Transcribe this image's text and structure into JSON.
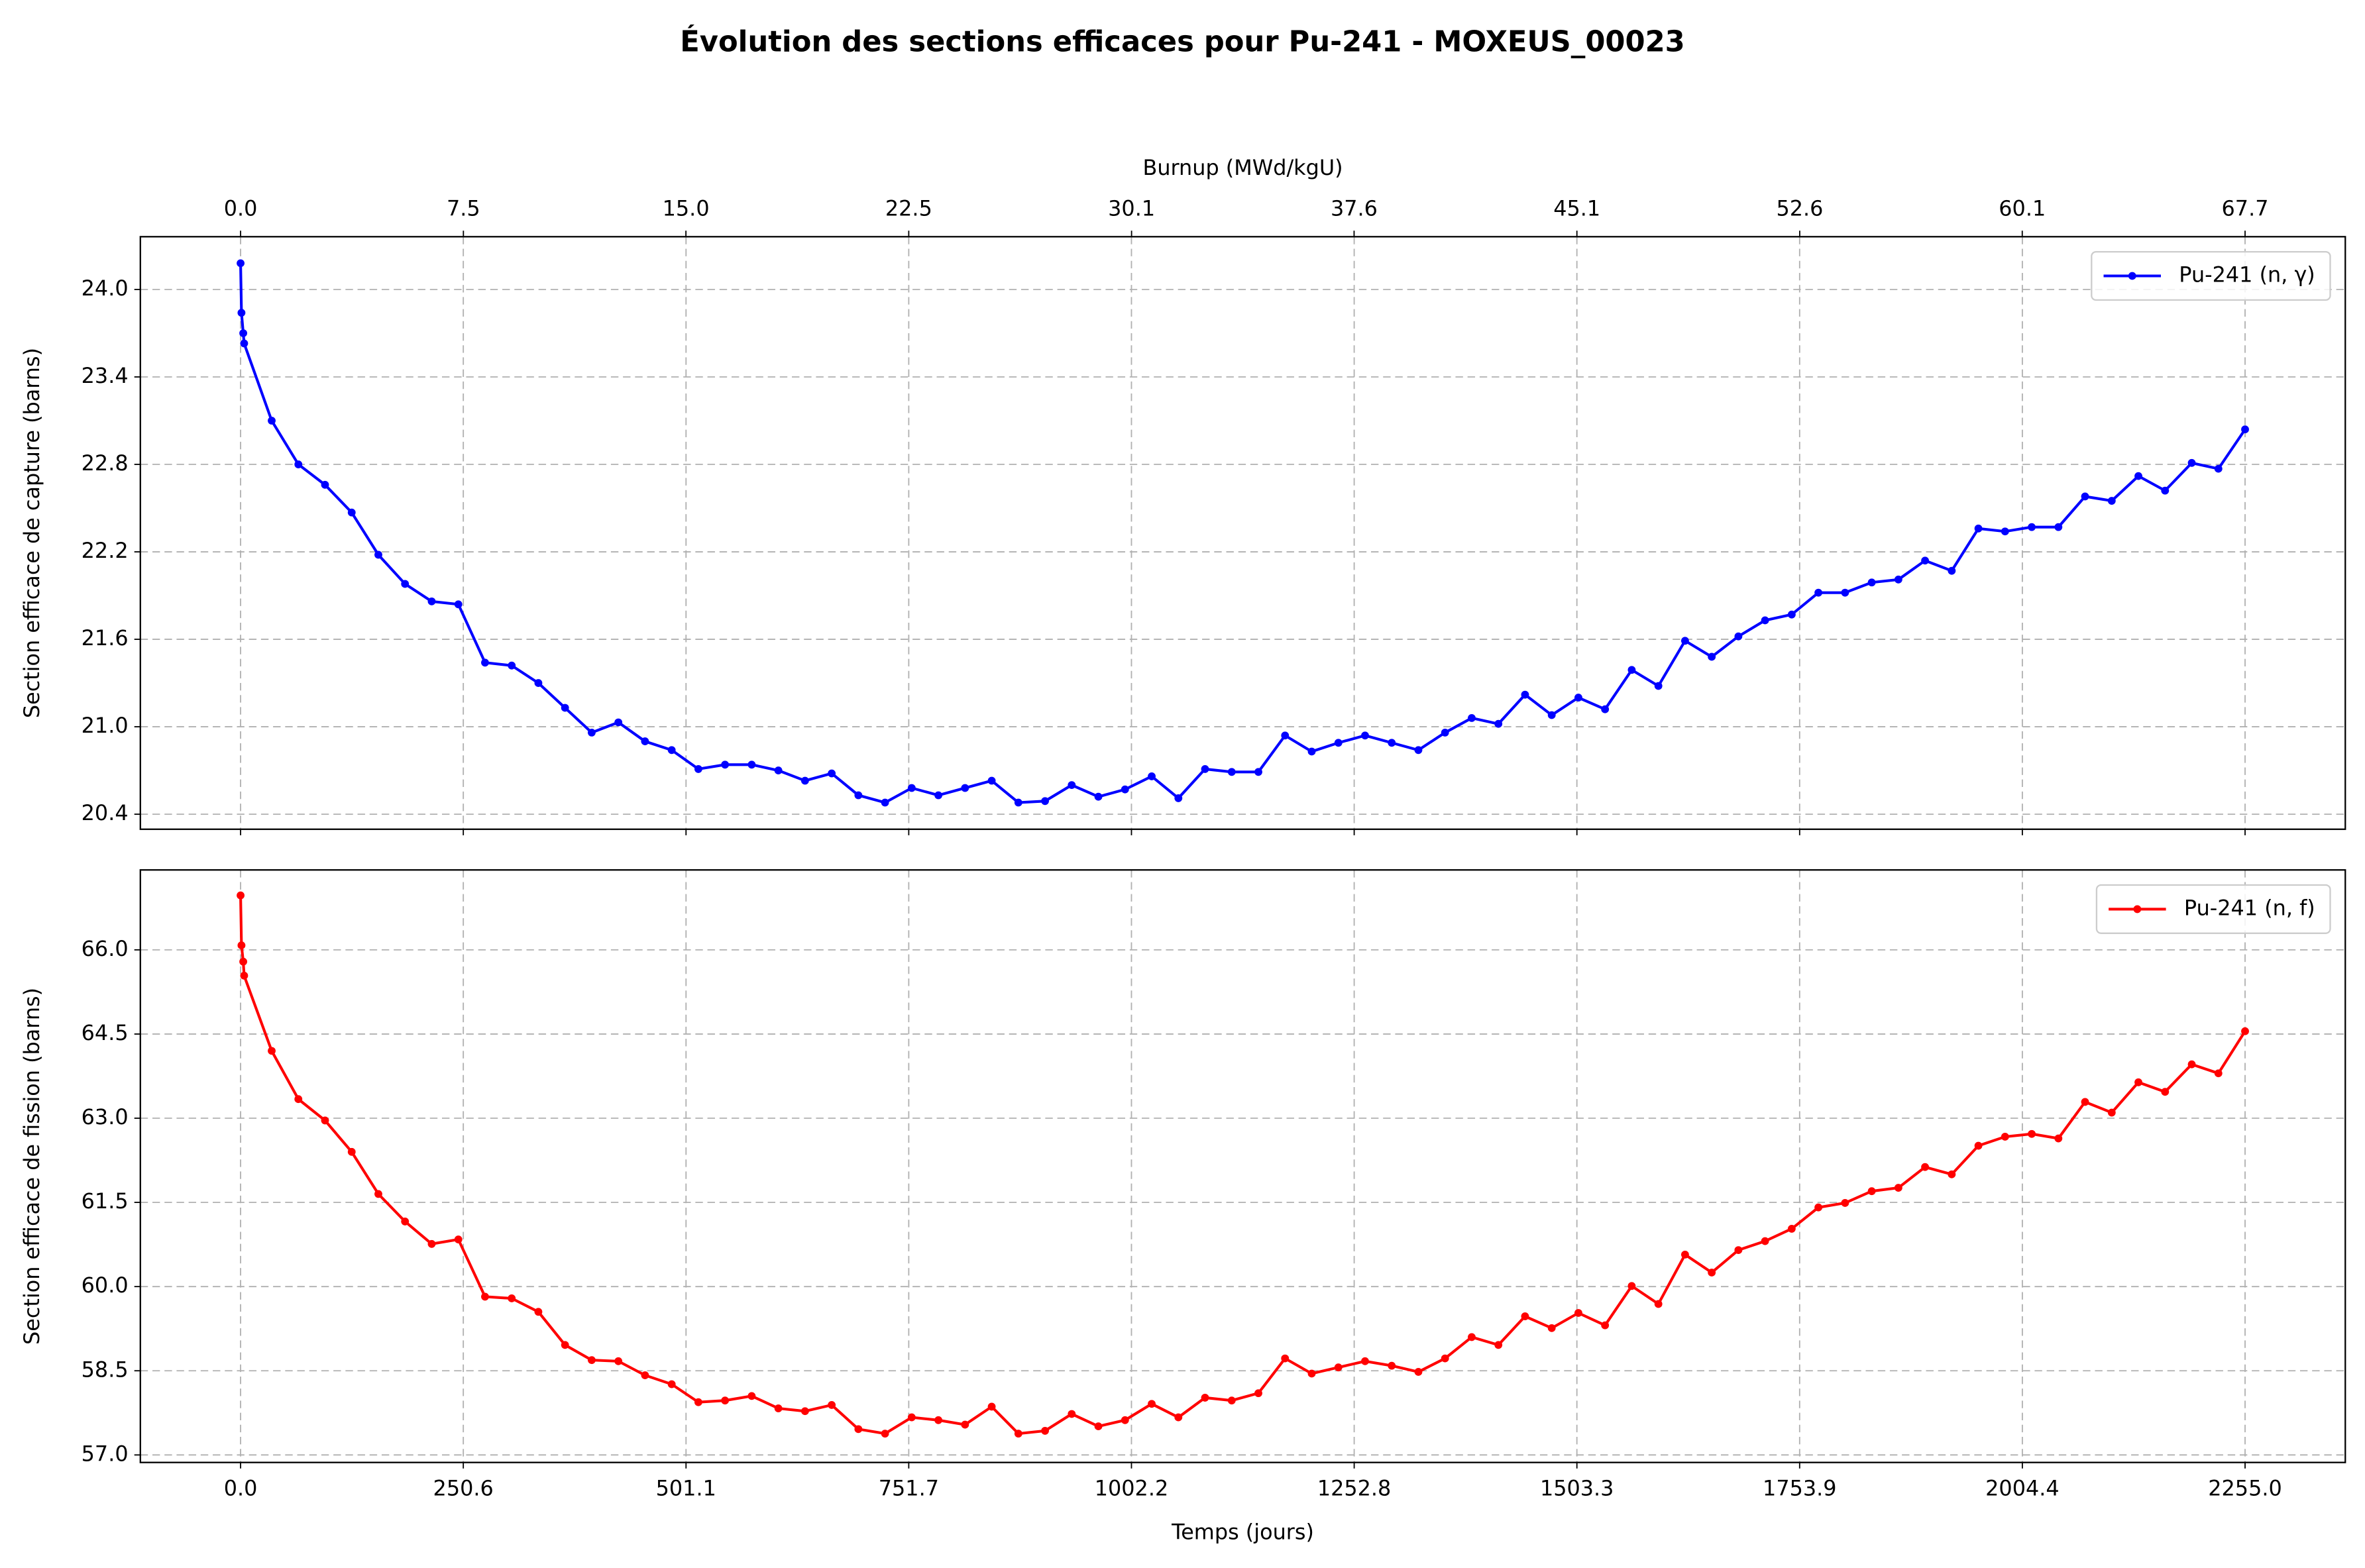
{
  "title": "Évolution des sections efficaces pour Pu-241 - MOXEUS_00023",
  "chart_data": [
    {
      "type": "line",
      "ylabel": "Section efficace de capture (barns)",
      "x2label": "Burnup (MWd/kgU)",
      "legend": "upper right",
      "grid": true,
      "xlim": [
        -112.75,
        2367.75
      ],
      "x2lim": [
        -3.3825,
        71.0325
      ],
      "x2ticks": [
        {
          "value": 0,
          "label": "0.0"
        },
        {
          "value": 7.52,
          "label": "7.5"
        },
        {
          "value": 15.03,
          "label": "15.0"
        },
        {
          "value": 22.55,
          "label": "22.5"
        },
        {
          "value": 30.07,
          "label": "30.1"
        },
        {
          "value": 37.58,
          "label": "37.6"
        },
        {
          "value": 45.1,
          "label": "45.1"
        },
        {
          "value": 52.62,
          "label": "52.6"
        },
        {
          "value": 60.13,
          "label": "60.1"
        },
        {
          "value": 67.65,
          "label": "67.7"
        }
      ],
      "ylim": [
        20.297,
        24.362
      ],
      "yticks": [
        20.4,
        {
          "value": 21,
          "label": "21.0"
        },
        21.6,
        22.2,
        22.8,
        23.4,
        {
          "value": 24,
          "label": "24.0"
        }
      ],
      "x": [
        0,
        1,
        3,
        4,
        35,
        65,
        95,
        125,
        155,
        185,
        215,
        245,
        275,
        305,
        335,
        365,
        395,
        425,
        455,
        485,
        515,
        545,
        575,
        605,
        635,
        665,
        695,
        725,
        755,
        785,
        815,
        845,
        875,
        905,
        935,
        965,
        995,
        1025,
        1055,
        1085,
        1115,
        1145,
        1175,
        1205,
        1235,
        1265,
        1295,
        1325,
        1355,
        1385,
        1415,
        1445,
        1475,
        1505,
        1535,
        1565,
        1595,
        1625,
        1655,
        1685,
        1715,
        1745,
        1775,
        1805,
        1835,
        1865,
        1895,
        1925,
        1955,
        1985,
        2015,
        2045,
        2075,
        2105,
        2135,
        2165,
        2195,
        2225,
        2255
      ],
      "series": [
        {
          "name": "Pu-241 (n, γ)",
          "color": "#0000ff",
          "values": [
            24.18,
            23.84,
            23.7,
            23.63,
            23.1,
            22.8,
            22.66,
            22.47,
            22.18,
            21.98,
            21.86,
            21.84,
            21.44,
            21.42,
            21.3,
            21.13,
            20.96,
            21.03,
            20.9,
            20.84,
            20.71,
            20.74,
            20.74,
            20.7,
            20.63,
            20.68,
            20.53,
            20.48,
            20.58,
            20.53,
            20.58,
            20.63,
            20.48,
            20.49,
            20.6,
            20.52,
            20.57,
            20.66,
            20.51,
            20.71,
            20.69,
            20.69,
            20.94,
            20.83,
            20.89,
            20.94,
            20.89,
            20.84,
            20.96,
            21.06,
            21.02,
            21.22,
            21.08,
            21.2,
            21.12,
            21.39,
            21.28,
            21.59,
            21.48,
            21.62,
            21.73,
            21.77,
            21.92,
            21.92,
            21.99,
            22.01,
            22.14,
            22.07,
            22.36,
            22.34,
            22.37,
            22.37,
            22.58,
            22.55,
            22.72,
            22.62,
            22.81,
            22.77,
            23.04
          ]
        }
      ]
    },
    {
      "type": "line",
      "ylabel": "Section efficace de fission (barns)",
      "xlabel": "Temps (jours)",
      "legend": "upper right",
      "grid": true,
      "xlim": [
        -112.75,
        2367.75
      ],
      "xticks": [
        {
          "value": 0,
          "label": "0.0"
        },
        {
          "value": 250.56,
          "label": "250.6"
        },
        {
          "value": 501.11,
          "label": "501.1"
        },
        {
          "value": 751.67,
          "label": "751.7"
        },
        {
          "value": 1002.22,
          "label": "1002.2"
        },
        {
          "value": 1252.78,
          "label": "1252.8"
        },
        {
          "value": 1503.33,
          "label": "1503.3"
        },
        {
          "value": 1753.89,
          "label": "1753.9"
        },
        {
          "value": 2004.44,
          "label": "2004.4"
        },
        {
          "value": 2255,
          "label": "2255.0"
        }
      ],
      "ylim": [
        56.866,
        67.424
      ],
      "yticks": [
        {
          "value": 57,
          "label": "57.0"
        },
        58.5,
        {
          "value": 60,
          "label": "60.0"
        },
        61.5,
        {
          "value": 63,
          "label": "63.0"
        },
        64.5,
        {
          "value": 66,
          "label": "66.0"
        }
      ],
      "x": [
        0,
        1,
        3,
        4,
        35,
        65,
        95,
        125,
        155,
        185,
        215,
        245,
        275,
        305,
        335,
        365,
        395,
        425,
        455,
        485,
        515,
        545,
        575,
        605,
        635,
        665,
        695,
        725,
        755,
        785,
        815,
        845,
        875,
        905,
        935,
        965,
        995,
        1025,
        1055,
        1085,
        1115,
        1145,
        1175,
        1205,
        1235,
        1265,
        1295,
        1325,
        1355,
        1385,
        1415,
        1445,
        1475,
        1505,
        1535,
        1565,
        1595,
        1625,
        1655,
        1685,
        1715,
        1745,
        1775,
        1805,
        1835,
        1865,
        1895,
        1925,
        1955,
        1985,
        2015,
        2045,
        2075,
        2105,
        2135,
        2165,
        2195,
        2225,
        2255
      ],
      "series": [
        {
          "name": "Pu-241 (n, f)",
          "color": "#ff0000",
          "values": [
            66.97,
            66.08,
            65.79,
            65.54,
            64.2,
            63.34,
            62.96,
            62.4,
            61.65,
            61.16,
            60.76,
            60.84,
            59.82,
            59.79,
            59.55,
            58.96,
            58.69,
            58.67,
            58.42,
            58.26,
            57.94,
            57.97,
            58.05,
            57.83,
            57.78,
            57.89,
            57.46,
            57.38,
            57.67,
            57.62,
            57.54,
            57.86,
            57.38,
            57.43,
            57.73,
            57.51,
            57.62,
            57.91,
            57.67,
            58.02,
            57.97,
            58.1,
            58.72,
            58.45,
            58.56,
            58.67,
            58.59,
            58.48,
            58.72,
            59.1,
            58.96,
            59.47,
            59.26,
            59.53,
            59.31,
            60.01,
            59.69,
            60.57,
            60.25,
            60.65,
            60.81,
            61.03,
            61.41,
            61.49,
            61.7,
            61.76,
            62.13,
            62.0,
            62.51,
            62.67,
            62.72,
            62.64,
            63.29,
            63.1,
            63.64,
            63.47,
            63.96,
            63.8,
            64.55
          ]
        }
      ]
    }
  ]
}
